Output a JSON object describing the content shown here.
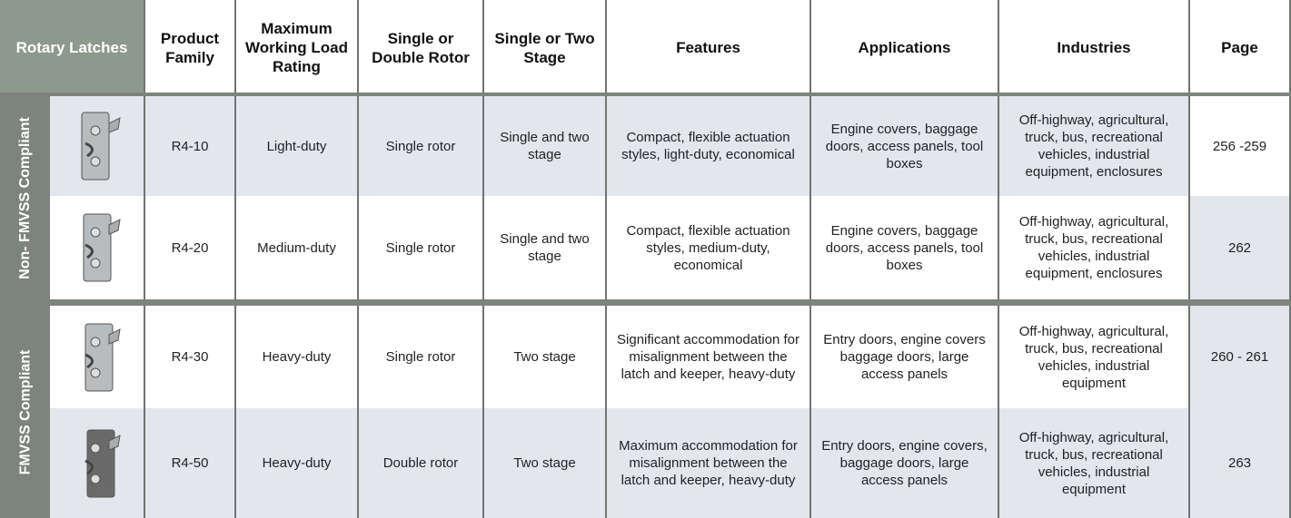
{
  "header": {
    "corner": "Rotary Latches",
    "columns": [
      "Product Family",
      "Maximum Working Load Rating",
      "Single or Double Rotor",
      "Single or Two Stage",
      "Features",
      "Applications",
      "Industries",
      "Page"
    ]
  },
  "groups": [
    {
      "label": "Non- FMVSS Compliant",
      "rows": [
        [
          "R4-10",
          "Light-duty",
          "Single rotor",
          "Single and two stage",
          "Compact, flexible actuation styles, light-duty, economical",
          "Engine covers, baggage doors, access panels, tool boxes",
          "Off-highway, agricultural, truck, bus, recreational vehicles, industrial equipment, enclosures",
          "256 -259"
        ],
        [
          "R4-20",
          "Medium-duty",
          "Single rotor",
          "Single and two stage",
          "Compact, flexible actuation styles, medium-duty, economical",
          "Engine covers, baggage doors, access panels, tool boxes",
          "Off-highway, agricultural, truck, bus, recreational vehicles, industrial equipment, enclosures",
          "262"
        ]
      ]
    },
    {
      "label": "FMVSS Compliant",
      "rows": [
        [
          "R4-30",
          "Heavy-duty",
          "Single rotor",
          "Two stage",
          "Significant accommodation for misalignment between the latch and keeper, heavy-duty",
          "Entry doors, engine covers baggage doors, large access panels",
          "Off-highway, agricultural, truck, bus, recreational vehicles, industrial equipment",
          "260 - 261"
        ],
        [
          "R4-50",
          "Heavy-duty",
          "Double rotor",
          "Two stage",
          "Maximum accommodation for misalignment between the latch and keeper, heavy-duty",
          "Entry doors, engine covers, baggage doors, large access panels",
          "Off-highway, agricultural, truck, bus, recreational vehicles, industrial equipment",
          "263"
        ]
      ]
    }
  ]
}
